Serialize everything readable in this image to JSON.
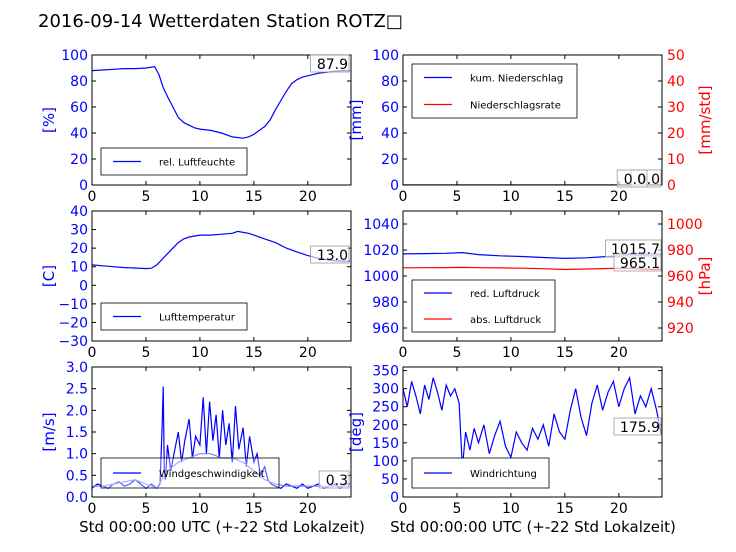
{
  "page": {
    "title": "2016-09-14 Wetterdaten Station ROTZ□",
    "xlabel": "Std 00:00:00 UTC (+-22 Std Lokalzeit)",
    "colors": {
      "primary": "#0000ff",
      "secondary": "#ff0000",
      "text": "#000000"
    }
  },
  "chart_data": [
    {
      "id": "humidity",
      "type": "line",
      "ylabel": "[%]",
      "xlim": [
        0,
        24
      ],
      "ylim": [
        0,
        100
      ],
      "xticks": [
        "0",
        "5",
        "10",
        "15",
        "20"
      ],
      "yticks": [
        "0",
        "20",
        "40",
        "60",
        "80",
        "100"
      ],
      "legend": [
        "rel. Luftfeuchte"
      ],
      "legend_position": "lower-left",
      "value_labels": [
        "87.9"
      ],
      "series": [
        {
          "name": "rel. Luftfeuchte",
          "color": "#0000ff",
          "x": [
            0,
            1,
            2,
            3,
            4,
            5,
            5.8,
            6.2,
            6.6,
            7,
            7.5,
            8,
            8.5,
            9,
            9.5,
            10,
            11,
            12,
            13,
            14,
            14.5,
            15,
            15.5,
            16,
            16.5,
            17,
            17.5,
            18,
            18.5,
            19,
            19.5,
            20,
            21,
            22,
            23,
            23.9
          ],
          "y": [
            88,
            88.5,
            89,
            89.5,
            89.5,
            90,
            91,
            85,
            75,
            68,
            60,
            52,
            48,
            46,
            44,
            43,
            42,
            40,
            37,
            36,
            37,
            39,
            42,
            45,
            50,
            58,
            65,
            72,
            78,
            81,
            83,
            84,
            86,
            87,
            87.9,
            87.9
          ]
        }
      ]
    },
    {
      "id": "precipitation",
      "type": "line",
      "ylabel": "[mm]",
      "ylabel2": "[mm/std]",
      "xlim": [
        0,
        24
      ],
      "ylim": [
        0,
        100
      ],
      "ylim2": [
        0,
        50
      ],
      "xticks": [
        "0",
        "5",
        "10",
        "15",
        "20"
      ],
      "yticks": [
        "0",
        "20",
        "40",
        "60",
        "80",
        "100"
      ],
      "yticks2": [
        "0",
        "10",
        "20",
        "30",
        "40",
        "50"
      ],
      "legend": [
        "kum. Niederschlag",
        "Niederschlagsrate"
      ],
      "legend_position": "upper-left",
      "value_labels": [
        "0.0",
        "0.0"
      ],
      "series": [
        {
          "name": "kum. Niederschlag",
          "color": "#0000ff",
          "axis": "left",
          "x": [
            0,
            24
          ],
          "y": [
            0,
            0
          ]
        },
        {
          "name": "Niederschlagsrate",
          "color": "#ff0000",
          "axis": "right",
          "x": [
            0,
            24
          ],
          "y": [
            0,
            0
          ]
        }
      ]
    },
    {
      "id": "temperature",
      "type": "line",
      "ylabel": "[C]",
      "xlim": [
        0,
        24
      ],
      "ylim": [
        -30,
        40
      ],
      "xticks": [
        "0",
        "5",
        "10",
        "15",
        "20"
      ],
      "yticks": [
        "−30",
        "−20",
        "−10",
        "0",
        "10",
        "20",
        "30",
        "40"
      ],
      "legend": [
        "Lufttemperatur"
      ],
      "legend_position": "lower-left",
      "value_labels": [
        "13.0"
      ],
      "series": [
        {
          "name": "Lufttemperatur",
          "color": "#0000ff",
          "x": [
            0,
            1,
            2,
            3,
            4,
            5,
            5.5,
            6,
            6.5,
            7,
            7.5,
            8,
            8.5,
            9,
            10,
            11,
            12,
            13,
            13.5,
            14,
            14.5,
            15,
            16,
            17,
            18,
            19,
            20,
            21,
            22,
            23,
            23.9
          ],
          "y": [
            11,
            10.5,
            10,
            9.5,
            9.3,
            9,
            9.2,
            11,
            14,
            17,
            20,
            23,
            25,
            26,
            27,
            27,
            27.5,
            28,
            29,
            28.5,
            28,
            27,
            25,
            23,
            20,
            18,
            16,
            14.5,
            13.5,
            13,
            13
          ]
        }
      ]
    },
    {
      "id": "pressure",
      "type": "line",
      "ylabel2": "[hPa]",
      "xlim": [
        0,
        24
      ],
      "ylim": [
        950,
        1050
      ],
      "ylim2": [
        910,
        1010
      ],
      "xticks": [
        "0",
        "5",
        "10",
        "15",
        "20"
      ],
      "yticks": [
        "960",
        "980",
        "1000",
        "1020",
        "1040"
      ],
      "yticks2": [
        "920",
        "940",
        "960",
        "980",
        "1000"
      ],
      "legend": [
        "red. Luftdruck",
        "abs. Luftdruck"
      ],
      "legend_position": "lower-left",
      "value_labels": [
        "1015.7",
        "965.1"
      ],
      "series": [
        {
          "name": "red. Luftdruck",
          "color": "#0000ff",
          "axis": "left",
          "x": [
            0,
            2,
            4,
            5.5,
            7,
            9,
            11,
            13,
            15,
            17,
            19,
            21,
            23,
            23.9
          ],
          "y": [
            1017,
            1017.2,
            1017.5,
            1018,
            1016.5,
            1015.5,
            1015,
            1014.2,
            1013.5,
            1014,
            1015,
            1016,
            1015.7,
            1015.7
          ]
        },
        {
          "name": "abs. Luftdruck",
          "color": "#ff0000",
          "axis": "right",
          "x": [
            0,
            2,
            4,
            5.5,
            7,
            9,
            11,
            13,
            15,
            17,
            19,
            21,
            23,
            23.9
          ],
          "y": [
            966.3,
            966.4,
            966.5,
            966.6,
            966.4,
            966.2,
            966,
            965.6,
            965,
            965.4,
            965.8,
            966,
            965.1,
            965.1
          ]
        }
      ]
    },
    {
      "id": "wind_speed",
      "type": "line",
      "ylabel": "[m/s]",
      "xlim": [
        0,
        24
      ],
      "ylim": [
        0,
        3
      ],
      "xticks": [
        "0",
        "5",
        "10",
        "15",
        "20"
      ],
      "yticks": [
        "0.0",
        "0.5",
        "1.0",
        "1.5",
        "2.0",
        "2.5",
        "3.0"
      ],
      "legend": [
        "Windgeschwindigkeit"
      ],
      "legend_position": "lower-left",
      "value_labels": [
        "0.3"
      ],
      "series": [
        {
          "name": "Windgeschwindigkeit",
          "color": "#0000ff",
          "x": [
            0,
            0.5,
            1,
            1.5,
            2,
            2.5,
            3,
            3.5,
            4,
            4.5,
            5,
            5.5,
            6,
            6.3,
            6.5,
            6.6,
            6.7,
            6.8,
            7,
            7.3,
            7.6,
            8,
            8.3,
            8.6,
            9,
            9.3,
            9.6,
            10,
            10.3,
            10.6,
            10.9,
            11.2,
            11.5,
            11.8,
            12.1,
            12.4,
            12.7,
            13,
            13.3,
            13.6,
            14,
            14.3,
            14.6,
            15,
            15.3,
            15.6,
            16,
            16.3,
            16.6,
            17,
            17.5,
            18,
            18.5,
            19,
            19.5,
            20,
            20.5,
            21,
            21.5,
            22,
            22.5,
            23,
            23.5,
            23.9
          ],
          "y": [
            0.2,
            0.3,
            0.25,
            0.2,
            0.3,
            0.35,
            0.25,
            0.3,
            0.4,
            0.3,
            0.2,
            0.3,
            0.2,
            0.3,
            1.6,
            2.55,
            0.6,
            0.4,
            1.2,
            0.6,
            1.0,
            1.5,
            0.8,
            1.3,
            1.8,
            0.9,
            1.4,
            1.2,
            2.3,
            1.0,
            2.2,
            1.3,
            1.9,
            0.9,
            2.0,
            1.2,
            1.7,
            0.8,
            2.1,
            1.1,
            1.6,
            0.7,
            1.4,
            0.8,
            1.0,
            0.5,
            0.7,
            0.4,
            0.3,
            0.25,
            0.2,
            0.3,
            0.25,
            0.2,
            0.3,
            0.2,
            0.25,
            0.3,
            0.2,
            0.25,
            0.3,
            0.2,
            0.3,
            0.3
          ]
        },
        {
          "name": "",
          "color": "#8080ff",
          "x": [
            0,
            1,
            2,
            3,
            4,
            5,
            6,
            6.7,
            7,
            8,
            9,
            10,
            11,
            12,
            13,
            14,
            15,
            16,
            17,
            18,
            19,
            20,
            21,
            22,
            23,
            23.9
          ],
          "y": [
            0.25,
            0.25,
            0.3,
            0.35,
            0.4,
            0.3,
            0.2,
            0.5,
            0.6,
            0.8,
            0.9,
            1.0,
            1.0,
            0.9,
            0.9,
            0.8,
            0.6,
            0.4,
            0.3,
            0.25,
            0.25,
            0.25,
            0.25,
            0.25,
            0.25,
            0.25
          ]
        }
      ]
    },
    {
      "id": "wind_direction",
      "type": "line",
      "ylabel": "[deg]",
      "xlim": [
        0,
        24
      ],
      "ylim": [
        0,
        360
      ],
      "xticks": [
        "0",
        "5",
        "10",
        "15",
        "20"
      ],
      "yticks": [
        "0",
        "50",
        "100",
        "150",
        "200",
        "250",
        "300",
        "350"
      ],
      "legend": [
        "Windrichtung"
      ],
      "legend_position": "lower-left",
      "value_labels": [
        "175.9"
      ],
      "series": [
        {
          "name": "Windrichtung",
          "color": "#0000ff",
          "x": [
            0,
            0.4,
            0.8,
            1.2,
            1.6,
            2,
            2.4,
            2.8,
            3.2,
            3.6,
            4,
            4.4,
            4.8,
            5.2,
            5.5,
            5.8,
            6.2,
            6.6,
            7,
            7.5,
            8,
            8.5,
            9,
            9.5,
            10,
            10.5,
            11,
            11.5,
            12,
            12.5,
            13,
            13.5,
            14,
            14.5,
            15,
            15.5,
            16,
            16.5,
            17,
            17.5,
            18,
            18.5,
            19,
            19.5,
            20,
            20.5,
            21,
            21.5,
            22,
            22.5,
            23,
            23.5,
            23.9
          ],
          "y": [
            300,
            250,
            320,
            280,
            230,
            310,
            270,
            330,
            290,
            240,
            310,
            280,
            300,
            260,
            80,
            180,
            130,
            190,
            150,
            200,
            120,
            170,
            210,
            140,
            110,
            180,
            150,
            130,
            190,
            160,
            200,
            140,
            230,
            180,
            160,
            240,
            300,
            220,
            170,
            260,
            310,
            240,
            290,
            320,
            250,
            300,
            330,
            230,
            280,
            250,
            300,
            240,
            176
          ]
        }
      ]
    }
  ]
}
